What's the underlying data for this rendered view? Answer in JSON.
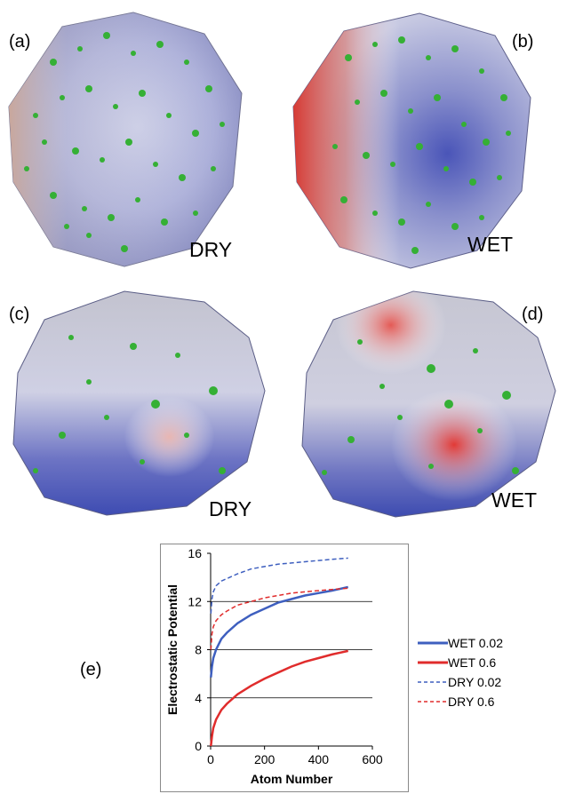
{
  "panels": {
    "a": {
      "label": "(a)",
      "state": "DRY"
    },
    "b": {
      "label": "(b)",
      "state": "WET"
    },
    "c": {
      "label": "(c)",
      "state": "DRY"
    },
    "d": {
      "label": "(d)",
      "state": "WET"
    },
    "e": {
      "label": "(e)"
    }
  },
  "colors": {
    "blue": "#3e5fbf",
    "red": "#e02c2c",
    "green_sphere": "#33b233",
    "surface_white": "#e6e6ee",
    "surface_blue": "#5560c0",
    "surface_red": "#d84a48"
  },
  "chart_data": {
    "type": "line",
    "xlabel": "Atom Number",
    "ylabel": "Electrostatic Potential",
    "xlim": [
      0,
      600
    ],
    "ylim": [
      0,
      16
    ],
    "xticks": [
      "0",
      "200",
      "400",
      "600"
    ],
    "yticks": [
      "0",
      "4",
      "8",
      "12",
      "16"
    ],
    "grid_y": [
      4,
      8,
      12
    ],
    "legend_position": "right",
    "series": [
      {
        "name": "WET 0.02",
        "color": "#3e5fbf",
        "style": "solid",
        "x": [
          1,
          5,
          10,
          20,
          40,
          60,
          100,
          150,
          200,
          250,
          300,
          350,
          400,
          450,
          510
        ],
        "y": [
          5.7,
          6.6,
          7.3,
          8.0,
          8.9,
          9.4,
          10.2,
          10.9,
          11.4,
          11.9,
          12.2,
          12.5,
          12.7,
          12.9,
          13.2
        ]
      },
      {
        "name": "WET 0.6",
        "color": "#e02c2c",
        "style": "solid",
        "x": [
          1,
          5,
          10,
          20,
          40,
          60,
          100,
          150,
          200,
          250,
          300,
          350,
          400,
          450,
          510
        ],
        "y": [
          0.0,
          0.8,
          1.5,
          2.2,
          3.0,
          3.5,
          4.3,
          5.0,
          5.6,
          6.1,
          6.6,
          7.0,
          7.3,
          7.6,
          7.9
        ]
      },
      {
        "name": "DRY 0.02",
        "color": "#3e5fbf",
        "style": "dashed",
        "x": [
          1,
          5,
          10,
          20,
          40,
          60,
          100,
          150,
          200,
          250,
          300,
          350,
          400,
          450,
          510
        ],
        "y": [
          11.0,
          12.2,
          12.8,
          13.3,
          13.7,
          13.9,
          14.3,
          14.7,
          14.9,
          15.1,
          15.2,
          15.3,
          15.4,
          15.5,
          15.6
        ]
      },
      {
        "name": "DRY 0.6",
        "color": "#e02c2c",
        "style": "dashed",
        "x": [
          1,
          5,
          10,
          20,
          40,
          60,
          100,
          150,
          200,
          250,
          300,
          350,
          400,
          450,
          510
        ],
        "y": [
          8.0,
          9.3,
          9.9,
          10.4,
          10.9,
          11.2,
          11.7,
          12.0,
          12.3,
          12.5,
          12.7,
          12.8,
          12.9,
          13.0,
          13.1
        ]
      }
    ]
  }
}
